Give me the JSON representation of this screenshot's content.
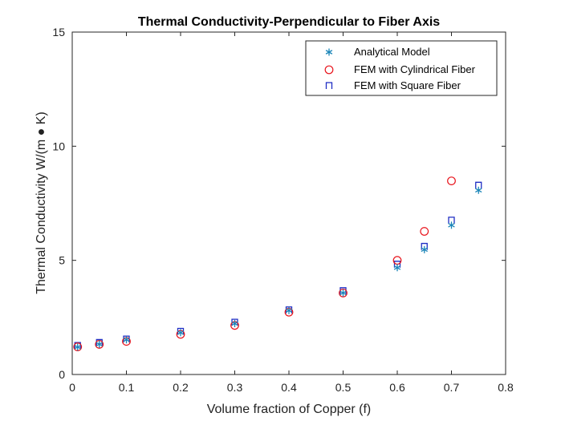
{
  "chart_data": {
    "type": "scatter",
    "title": "Thermal Conductivity-Perpendicular to Fiber Axis",
    "xlabel": "Volume fraction of Copper (f)",
    "ylabel": "Thermal Conductivity W/(m ● K)",
    "xlim": [
      0,
      0.8
    ],
    "ylim": [
      0,
      15
    ],
    "xticks": [
      0,
      0.1,
      0.2,
      0.3,
      0.4,
      0.5,
      0.6,
      0.7,
      0.8
    ],
    "yticks": [
      0,
      5,
      10,
      15
    ],
    "xtick_labels": [
      "0",
      "0.1",
      "0.2",
      "0.3",
      "0.4",
      "0.5",
      "0.6",
      "0.7",
      "0.8"
    ],
    "ytick_labels": [
      "0",
      "5",
      "10",
      "15"
    ],
    "grid": false,
    "legend_position": "top-right",
    "series": [
      {
        "name": "Analytical Model",
        "marker": "asterisk",
        "color": "#1a85b8",
        "x": [
          0.01,
          0.05,
          0.1,
          0.2,
          0.3,
          0.4,
          0.5,
          0.6,
          0.65,
          0.7,
          0.75
        ],
        "y": [
          1.2,
          1.33,
          1.52,
          1.83,
          2.23,
          2.8,
          3.57,
          4.68,
          5.47,
          6.54,
          8.07
        ]
      },
      {
        "name": "FEM with Cylindrical Fiber",
        "marker": "circle",
        "color": "#e8131b",
        "x": [
          0.01,
          0.05,
          0.1,
          0.2,
          0.3,
          0.4,
          0.5,
          0.6,
          0.65,
          0.7
        ],
        "y": [
          1.21,
          1.32,
          1.45,
          1.76,
          2.15,
          2.73,
          3.57,
          5.0,
          6.27,
          8.48
        ]
      },
      {
        "name": "FEM with Square Fiber",
        "marker": "square-open",
        "color": "#1f2dc4",
        "x": [
          0.01,
          0.05,
          0.1,
          0.2,
          0.3,
          0.4,
          0.5,
          0.6,
          0.65,
          0.7,
          0.75
        ],
        "y": [
          1.26,
          1.39,
          1.54,
          1.88,
          2.28,
          2.82,
          3.66,
          4.82,
          5.6,
          6.75,
          8.28
        ]
      }
    ]
  }
}
